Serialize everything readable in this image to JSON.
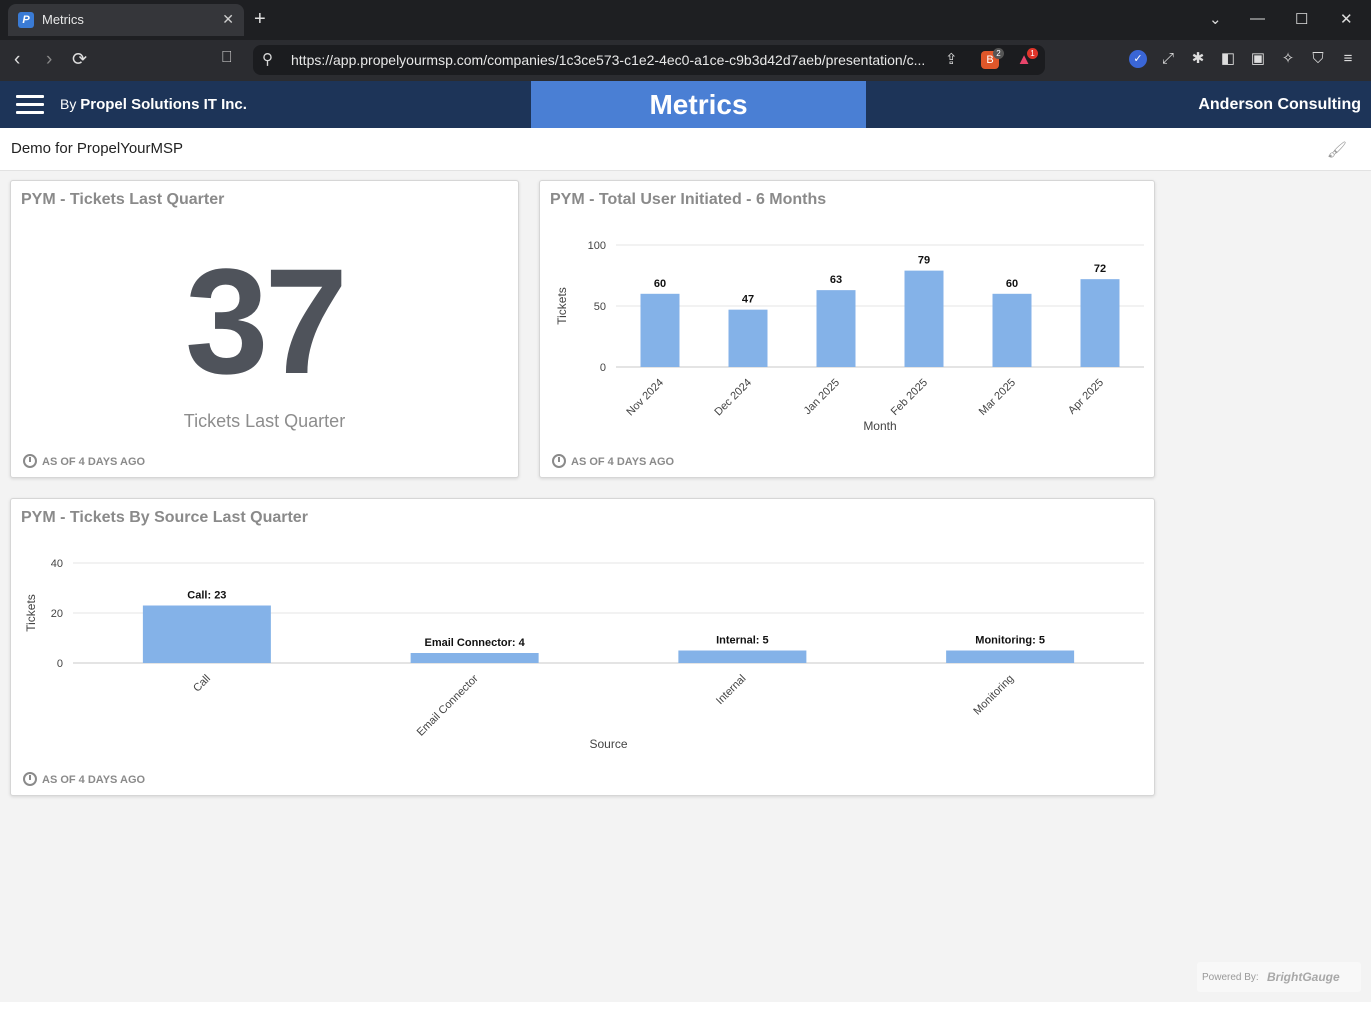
{
  "browser": {
    "tab_title": "Metrics",
    "url": "https://app.propelyourmsp.com/companies/1c3ce573-c1e2-4ec0-a1ce-c9b3d42d7aeb/presentation/c...",
    "ext_badge_1": "2",
    "ext_badge_2": "1"
  },
  "app": {
    "by_prefix": "By",
    "company": "Propel Solutions IT Inc.",
    "page_title": "Metrics",
    "client": "Anderson Consulting",
    "demo_label": "Demo for PropelYourMSP"
  },
  "card1": {
    "title": "PYM - Tickets Last Quarter",
    "value": "37",
    "caption": "Tickets Last Quarter",
    "asof": "AS OF 4 DAYS AGO"
  },
  "card2": {
    "title": "PYM - Total User Initiated - 6 Months",
    "asof": "AS OF 4 DAYS AGO"
  },
  "card3": {
    "title": "PYM - Tickets By Source Last Quarter",
    "asof": "AS OF 4 DAYS AGO"
  },
  "footer": {
    "powered_by": "Powered By:",
    "brand": "BrightGauge"
  },
  "colors": {
    "bar": "#84b2e8",
    "header": "#1d3458",
    "accent": "#4a7fd4"
  },
  "chart_data": [
    {
      "type": "bar",
      "categories": [
        "Nov 2024",
        "Dec 2024",
        "Jan 2025",
        "Feb 2025",
        "Mar 2025",
        "Apr 2025"
      ],
      "values": [
        60,
        47,
        63,
        79,
        60,
        72
      ],
      "data_labels": [
        "60",
        "47",
        "63",
        "79",
        "60",
        "72"
      ],
      "ylabel": "Tickets",
      "xlabel": "Month",
      "ylim": [
        0,
        100
      ],
      "yticks": [
        "0",
        "50",
        "100"
      ],
      "grid": true
    },
    {
      "type": "bar",
      "categories": [
        "Call",
        "Email Connector",
        "Internal",
        "Monitoring"
      ],
      "values": [
        23,
        4,
        5,
        5
      ],
      "data_labels": [
        "Call: 23",
        "Email Connector: 4",
        "Internal: 5",
        "Monitoring: 5"
      ],
      "ylabel": "Tickets",
      "xlabel": "Source",
      "ylim": [
        0,
        40
      ],
      "yticks": [
        "0",
        "20",
        "40"
      ],
      "grid": true
    }
  ]
}
